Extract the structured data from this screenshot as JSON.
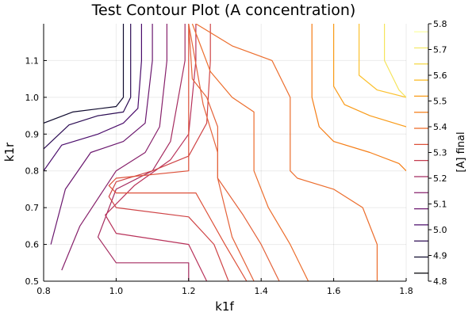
{
  "chart_data": {
    "type": "contour",
    "title": "Test Contour Plot (A concentration)",
    "xlabel": "k1f",
    "ylabel": "k1r",
    "xlim": [
      0.8,
      1.8
    ],
    "ylim": [
      0.5,
      1.2
    ],
    "xticks": [
      "0.8",
      "1.0",
      "1.2",
      "1.4",
      "1.6",
      "1.8"
    ],
    "yticks": [
      "0.5",
      "0.6",
      "0.7",
      "0.8",
      "0.9",
      "1.0",
      "1.1"
    ],
    "grid": true,
    "colorbar": {
      "label": "[A] final",
      "range": [
        4.8,
        5.8
      ],
      "ticks": [
        "4.8",
        "4.9",
        "5.0",
        "5.1",
        "5.2",
        "5.3",
        "5.4",
        "5.5",
        "5.6",
        "5.7",
        "5.8"
      ]
    },
    "contours": [
      {
        "level": 4.85,
        "color": "#0f0a2e",
        "points": [
          [
            0.8,
            0.93
          ],
          [
            0.88,
            0.96
          ],
          [
            0.96,
            0.97
          ],
          [
            1.0,
            0.975
          ],
          [
            1.02,
            1.0
          ],
          [
            1.02,
            1.1
          ],
          [
            1.02,
            1.2
          ]
        ]
      },
      {
        "level": 4.93,
        "color": "#2b0b53",
        "points": [
          [
            0.8,
            0.86
          ],
          [
            0.87,
            0.925
          ],
          [
            0.95,
            0.95
          ],
          [
            1.02,
            0.96
          ],
          [
            1.04,
            1.0
          ],
          [
            1.04,
            1.1
          ],
          [
            1.04,
            1.2
          ]
        ]
      },
      {
        "level": 5.01,
        "color": "#4a0c6b",
        "points": [
          [
            0.8,
            0.8
          ],
          [
            0.85,
            0.87
          ],
          [
            0.95,
            0.9
          ],
          [
            1.02,
            0.93
          ],
          [
            1.06,
            0.97
          ],
          [
            1.07,
            1.1
          ],
          [
            1.07,
            1.2
          ]
        ]
      },
      {
        "level": 5.09,
        "color": "#6a176e",
        "points": [
          [
            0.82,
            0.6
          ],
          [
            0.86,
            0.75
          ],
          [
            0.93,
            0.85
          ],
          [
            1.02,
            0.88
          ],
          [
            1.08,
            0.93
          ],
          [
            1.1,
            1.1
          ],
          [
            1.1,
            1.2
          ]
        ]
      },
      {
        "level": 5.17,
        "color": "#87216b",
        "points": [
          [
            0.85,
            0.53
          ],
          [
            0.9,
            0.65
          ],
          [
            1.0,
            0.8
          ],
          [
            1.08,
            0.85
          ],
          [
            1.12,
            0.92
          ],
          [
            1.14,
            1.1
          ],
          [
            1.14,
            1.2
          ]
        ]
      },
      {
        "level": 5.25,
        "color": "#a52c60",
        "points": [
          [
            1.2,
            0.5
          ],
          [
            1.2,
            0.55
          ],
          [
            1.0,
            0.55
          ],
          [
            0.95,
            0.62
          ],
          [
            1.0,
            0.75
          ],
          [
            1.1,
            0.8
          ],
          [
            1.15,
            0.88
          ],
          [
            1.19,
            1.1
          ],
          [
            1.19,
            1.2
          ]
        ]
      },
      {
        "level": 5.33,
        "color": "#b8325a",
        "points": [
          [
            1.25,
            0.5
          ],
          [
            1.2,
            0.6
          ],
          [
            1.0,
            0.63
          ],
          [
            0.97,
            0.68
          ],
          [
            1.05,
            0.76
          ],
          [
            1.15,
            0.83
          ],
          [
            1.2,
            0.9
          ],
          [
            1.22,
            1.1
          ],
          [
            1.22,
            1.2
          ]
        ]
      },
      {
        "level": 5.41,
        "color": "#cf4446",
        "points": [
          [
            1.31,
            0.5
          ],
          [
            1.27,
            0.6
          ],
          [
            1.2,
            0.675
          ],
          [
            1.0,
            0.7
          ],
          [
            0.98,
            0.73
          ],
          [
            1.0,
            0.77
          ],
          [
            1.1,
            0.8
          ],
          [
            1.2,
            0.84
          ],
          [
            1.25,
            0.93
          ],
          [
            1.26,
            1.1
          ],
          [
            1.26,
            1.2
          ]
        ]
      },
      {
        "level": 5.49,
        "color": "#dd513a",
        "points": [
          [
            1.36,
            0.5
          ],
          [
            1.3,
            0.6
          ],
          [
            1.22,
            0.74
          ],
          [
            1.0,
            0.74
          ],
          [
            0.98,
            0.76
          ],
          [
            1.0,
            0.78
          ],
          [
            1.2,
            0.8
          ],
          [
            1.2,
            1.2
          ]
        ]
      },
      {
        "level": 5.57,
        "color": "#e4623a",
        "points": [
          [
            1.45,
            0.5
          ],
          [
            1.4,
            0.6
          ],
          [
            1.35,
            0.68
          ],
          [
            1.28,
            0.78
          ],
          [
            1.28,
            0.85
          ],
          [
            1.24,
            0.98
          ],
          [
            1.2,
            1.2
          ]
        ]
      },
      {
        "level": 5.57,
        "color": "#e4623a",
        "points": [
          [
            1.38,
            0.5
          ],
          [
            1.32,
            0.62
          ],
          [
            1.28,
            0.78
          ],
          [
            1.28,
            0.8
          ],
          [
            1.28,
            0.92
          ],
          [
            1.25,
            1.0
          ],
          [
            1.21,
            1.05
          ],
          [
            1.2,
            1.2
          ]
        ]
      },
      {
        "level": 5.63,
        "color": "#ec6d2c",
        "points": [
          [
            1.21,
            1.2
          ],
          [
            1.26,
            1.07
          ],
          [
            1.32,
            1.0
          ],
          [
            1.38,
            0.96
          ],
          [
            1.38,
            0.8
          ],
          [
            1.42,
            0.7
          ],
          [
            1.48,
            0.6
          ],
          [
            1.53,
            0.5
          ]
        ]
      },
      {
        "level": 5.63,
        "color": "#ec6d2c",
        "points": [
          [
            1.22,
            1.2
          ],
          [
            1.32,
            1.14
          ],
          [
            1.43,
            1.1
          ],
          [
            1.48,
            1.0
          ],
          [
            1.48,
            0.8
          ],
          [
            1.5,
            0.78
          ],
          [
            1.6,
            0.75
          ],
          [
            1.68,
            0.7
          ],
          [
            1.72,
            0.6
          ],
          [
            1.72,
            0.5
          ]
        ]
      },
      {
        "level": 5.7,
        "color": "#f57d15",
        "points": [
          [
            1.54,
            1.2
          ],
          [
            1.54,
            1.0
          ],
          [
            1.56,
            0.92
          ],
          [
            1.6,
            0.88
          ],
          [
            1.7,
            0.85
          ],
          [
            1.78,
            0.82
          ],
          [
            1.8,
            0.8
          ]
        ]
      },
      {
        "level": 5.75,
        "color": "#f99b18",
        "points": [
          [
            1.6,
            1.2
          ],
          [
            1.6,
            1.03
          ],
          [
            1.63,
            0.98
          ],
          [
            1.7,
            0.95
          ],
          [
            1.8,
            0.92
          ]
        ]
      },
      {
        "level": 5.8,
        "color": "#fbc02d",
        "points": [
          [
            1.67,
            1.2
          ],
          [
            1.67,
            1.06
          ],
          [
            1.72,
            1.02
          ],
          [
            1.8,
            1.0
          ]
        ]
      },
      {
        "level": 5.85,
        "color": "#f5e45c",
        "points": [
          [
            1.74,
            1.2
          ],
          [
            1.74,
            1.1
          ],
          [
            1.78,
            1.02
          ],
          [
            1.8,
            1.0
          ]
        ]
      }
    ]
  }
}
